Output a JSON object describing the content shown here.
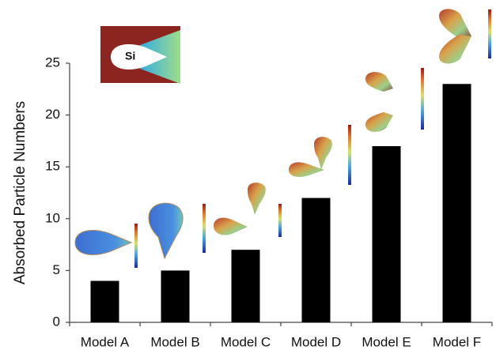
{
  "chart_data": {
    "type": "bar",
    "y_label": "Absorbed Particle Numbers",
    "annotation": "Si",
    "categories": [
      "Model A",
      "Model B",
      "Model C",
      "Model D",
      "Model E",
      "Model F"
    ],
    "values": [
      4,
      5,
      7,
      12,
      17,
      23
    ],
    "color": "#000000",
    "ylim": [
      0,
      25
    ],
    "yticks": [
      0,
      5,
      10,
      15,
      20,
      25
    ],
    "grid": false
  }
}
